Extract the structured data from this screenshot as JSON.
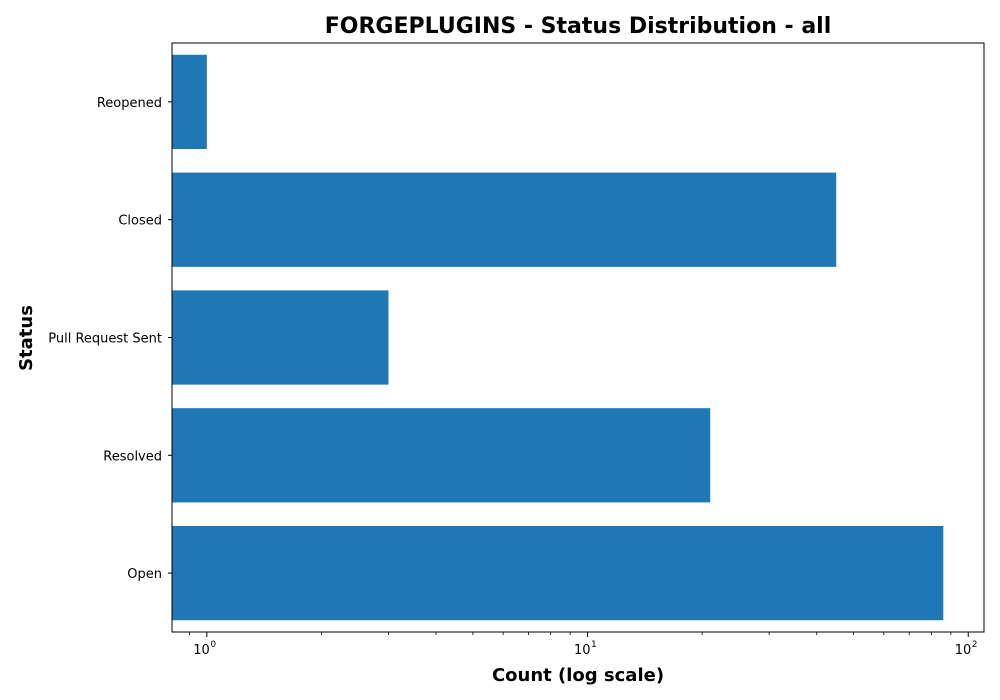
{
  "chart_data": {
    "type": "bar",
    "orientation": "horizontal",
    "title": "FORGEPLUGINS - Status Distribution - all",
    "xlabel": "Count (log scale)",
    "ylabel": "Status",
    "x_scale": "log",
    "xlim": [
      0.81,
      110
    ],
    "x_ticks": [
      {
        "value": 1,
        "base": "10",
        "exp": "0"
      },
      {
        "value": 10,
        "base": "10",
        "exp": "1"
      },
      {
        "value": 100,
        "base": "10",
        "exp": "2"
      }
    ],
    "categories": [
      "Open",
      "Resolved",
      "Pull Request Sent",
      "Closed",
      "Reopened"
    ],
    "values": [
      86,
      21,
      3,
      45,
      1
    ],
    "bar_color": "#1f77b4",
    "grid": false,
    "legend": "none"
  }
}
